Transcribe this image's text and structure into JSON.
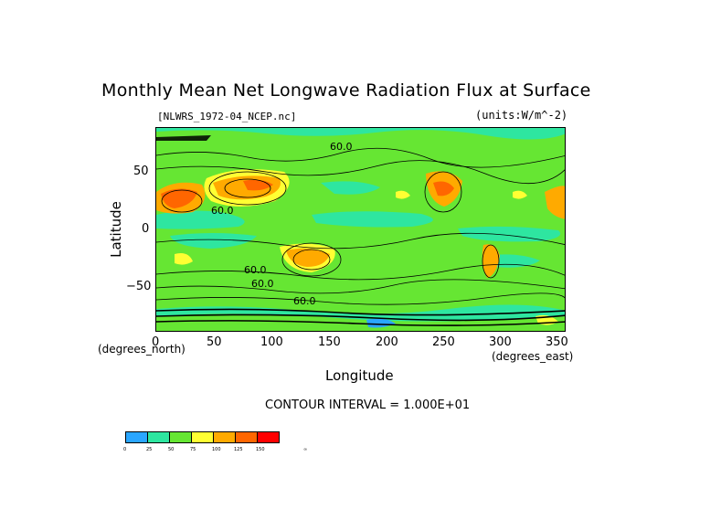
{
  "title": "Monthly Mean Net Longwave Radiation Flux at Surface",
  "file_label": "[NLWRS_1972-04_NCEP.nc]",
  "units_label": "(units:W/m^-2)",
  "x_axis": {
    "label": "Longitude",
    "unit_note": "(degrees_east)",
    "ticks": [
      "0",
      "50",
      "100",
      "150",
      "200",
      "250",
      "300",
      "350"
    ],
    "range": [
      0,
      357.5
    ]
  },
  "y_axis": {
    "label": "Latitude",
    "unit_note": "(degrees_north)",
    "ticks": [
      "50",
      "0",
      "−50"
    ],
    "range": [
      -88,
      88
    ]
  },
  "contour_interval": "CONTOUR INTERVAL = 1.000E+01",
  "contour_labels": [
    "60.0",
    "60.0",
    "60.0",
    "60.0",
    "60.0"
  ],
  "colorbar": {
    "colors": [
      "#2aa6ff",
      "#2ee6a0",
      "#66e633",
      "#ffff33",
      "#ffaa00",
      "#ff6600",
      "#ff0000"
    ],
    "labels": [
      "0",
      "25",
      "50",
      "75",
      "100",
      "125",
      "150",
      "∞"
    ]
  },
  "colors": {
    "background_field": "#66e633",
    "contour_line": "#000000"
  }
}
